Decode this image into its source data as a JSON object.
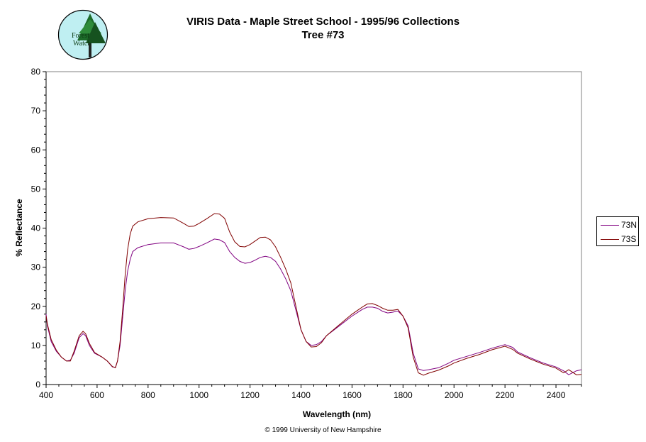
{
  "logo": {
    "text_line1": "Forest",
    "text_line2": "Watch"
  },
  "copyright": "© 1999 University of New Hampshire",
  "chart_data": {
    "type": "line",
    "title": "VIRIS Data - Maple Street School - 1995/96 Collections",
    "subtitle": "Tree #73",
    "xlabel": "Wavelength (nm)",
    "ylabel": "% Reflectance",
    "xlim": [
      400,
      2500
    ],
    "ylim": [
      0,
      80
    ],
    "x_ticks": [
      400,
      600,
      800,
      1000,
      1200,
      1400,
      1600,
      1800,
      2000,
      2200,
      2400
    ],
    "y_ticks": [
      0,
      10,
      20,
      30,
      40,
      50,
      60,
      70,
      80
    ],
    "grid": false,
    "legend_position": "right",
    "series": [
      {
        "name": "73N",
        "color": "#800080",
        "points": [
          [
            400,
            18
          ],
          [
            405,
            15
          ],
          [
            420,
            11
          ],
          [
            440,
            8.5
          ],
          [
            460,
            7
          ],
          [
            480,
            6
          ],
          [
            495,
            6.2
          ],
          [
            510,
            8
          ],
          [
            530,
            12
          ],
          [
            545,
            13
          ],
          [
            555,
            12.5
          ],
          [
            570,
            10
          ],
          [
            590,
            8
          ],
          [
            620,
            7
          ],
          [
            640,
            6
          ],
          [
            660,
            4.5
          ],
          [
            672,
            4.4
          ],
          [
            680,
            6
          ],
          [
            690,
            10
          ],
          [
            700,
            17
          ],
          [
            710,
            24
          ],
          [
            720,
            29
          ],
          [
            730,
            32
          ],
          [
            740,
            34
          ],
          [
            760,
            35
          ],
          [
            800,
            35.8
          ],
          [
            850,
            36.2
          ],
          [
            900,
            36.2
          ],
          [
            940,
            35.2
          ],
          [
            960,
            34.6
          ],
          [
            980,
            34.8
          ],
          [
            1000,
            35.3
          ],
          [
            1030,
            36.2
          ],
          [
            1060,
            37.2
          ],
          [
            1080,
            37
          ],
          [
            1100,
            36.3
          ],
          [
            1120,
            34
          ],
          [
            1140,
            32.5
          ],
          [
            1160,
            31.5
          ],
          [
            1180,
            31
          ],
          [
            1200,
            31.2
          ],
          [
            1220,
            31.8
          ],
          [
            1240,
            32.5
          ],
          [
            1260,
            32.8
          ],
          [
            1280,
            32.5
          ],
          [
            1300,
            31.5
          ],
          [
            1320,
            29.5
          ],
          [
            1340,
            27
          ],
          [
            1360,
            24
          ],
          [
            1380,
            19
          ],
          [
            1400,
            14
          ],
          [
            1420,
            11
          ],
          [
            1440,
            10
          ],
          [
            1460,
            10.2
          ],
          [
            1480,
            11
          ],
          [
            1500,
            12.5
          ],
          [
            1550,
            15
          ],
          [
            1600,
            17.5
          ],
          [
            1640,
            19.2
          ],
          [
            1660,
            19.8
          ],
          [
            1680,
            19.8
          ],
          [
            1700,
            19.5
          ],
          [
            1720,
            18.7
          ],
          [
            1740,
            18.3
          ],
          [
            1760,
            18.5
          ],
          [
            1780,
            18.8
          ],
          [
            1800,
            17.5
          ],
          [
            1820,
            15
          ],
          [
            1840,
            8
          ],
          [
            1860,
            4
          ],
          [
            1880,
            3.6
          ],
          [
            1900,
            3.8
          ],
          [
            1940,
            4.3
          ],
          [
            1980,
            5.5
          ],
          [
            2000,
            6.2
          ],
          [
            2050,
            7.2
          ],
          [
            2100,
            8.2
          ],
          [
            2150,
            9.3
          ],
          [
            2200,
            10.2
          ],
          [
            2230,
            9.5
          ],
          [
            2250,
            8.3
          ],
          [
            2300,
            6.8
          ],
          [
            2350,
            5.5
          ],
          [
            2400,
            4.5
          ],
          [
            2430,
            3.5
          ],
          [
            2450,
            2.5
          ],
          [
            2480,
            3.5
          ],
          [
            2500,
            3.8
          ]
        ]
      },
      {
        "name": "73S",
        "color": "#800000",
        "points": [
          [
            400,
            17.5
          ],
          [
            405,
            15.5
          ],
          [
            420,
            11.5
          ],
          [
            440,
            8.8
          ],
          [
            460,
            7
          ],
          [
            480,
            6
          ],
          [
            495,
            6
          ],
          [
            510,
            8.5
          ],
          [
            530,
            12.5
          ],
          [
            545,
            13.6
          ],
          [
            555,
            13
          ],
          [
            570,
            10.5
          ],
          [
            590,
            8.2
          ],
          [
            620,
            7
          ],
          [
            640,
            6
          ],
          [
            660,
            4.6
          ],
          [
            672,
            4.3
          ],
          [
            680,
            6
          ],
          [
            690,
            11
          ],
          [
            700,
            19
          ],
          [
            710,
            28
          ],
          [
            720,
            34.5
          ],
          [
            730,
            38.5
          ],
          [
            740,
            40.5
          ],
          [
            760,
            41.6
          ],
          [
            800,
            42.4
          ],
          [
            850,
            42.7
          ],
          [
            900,
            42.6
          ],
          [
            940,
            41.2
          ],
          [
            960,
            40.4
          ],
          [
            980,
            40.5
          ],
          [
            1000,
            41.2
          ],
          [
            1030,
            42.4
          ],
          [
            1060,
            43.7
          ],
          [
            1080,
            43.6
          ],
          [
            1100,
            42.5
          ],
          [
            1120,
            39
          ],
          [
            1140,
            36.5
          ],
          [
            1160,
            35.3
          ],
          [
            1180,
            35.2
          ],
          [
            1200,
            35.8
          ],
          [
            1220,
            36.7
          ],
          [
            1240,
            37.6
          ],
          [
            1260,
            37.7
          ],
          [
            1280,
            37
          ],
          [
            1300,
            35.2
          ],
          [
            1320,
            32.5
          ],
          [
            1340,
            29.5
          ],
          [
            1360,
            26
          ],
          [
            1380,
            20
          ],
          [
            1400,
            14
          ],
          [
            1420,
            11
          ],
          [
            1440,
            9.6
          ],
          [
            1460,
            9.7
          ],
          [
            1480,
            10.7
          ],
          [
            1500,
            12.5
          ],
          [
            1550,
            15.3
          ],
          [
            1600,
            18
          ],
          [
            1640,
            19.8
          ],
          [
            1660,
            20.6
          ],
          [
            1680,
            20.7
          ],
          [
            1700,
            20.2
          ],
          [
            1720,
            19.5
          ],
          [
            1740,
            19
          ],
          [
            1760,
            19
          ],
          [
            1780,
            19.2
          ],
          [
            1800,
            17.5
          ],
          [
            1820,
            14.5
          ],
          [
            1840,
            7
          ],
          [
            1860,
            3
          ],
          [
            1880,
            2.4
          ],
          [
            1900,
            2.9
          ],
          [
            1940,
            3.7
          ],
          [
            1980,
            4.8
          ],
          [
            2000,
            5.5
          ],
          [
            2050,
            6.7
          ],
          [
            2100,
            7.7
          ],
          [
            2150,
            8.9
          ],
          [
            2200,
            9.8
          ],
          [
            2230,
            9
          ],
          [
            2250,
            8
          ],
          [
            2300,
            6.5
          ],
          [
            2350,
            5.2
          ],
          [
            2400,
            4.2
          ],
          [
            2430,
            3
          ],
          [
            2450,
            3.8
          ],
          [
            2480,
            2.5
          ],
          [
            2500,
            2.6
          ]
        ]
      }
    ]
  }
}
